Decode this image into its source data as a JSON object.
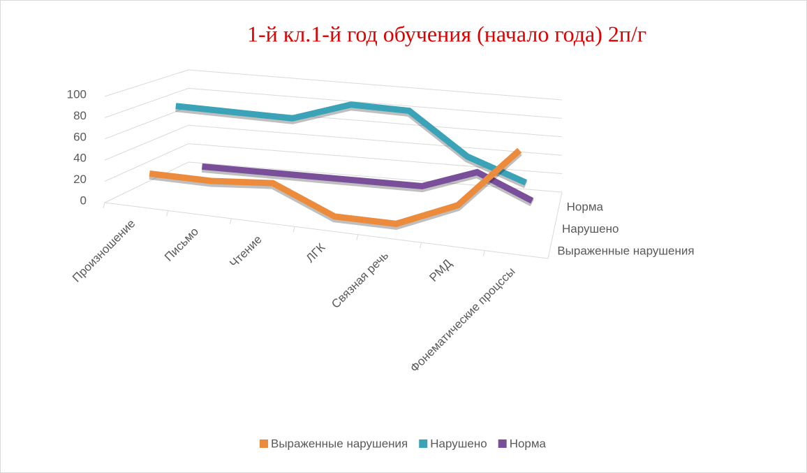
{
  "chart_data": {
    "type": "line3d",
    "title": "1-й кл.1-й год обучения (начало года) 2п/г",
    "categories": [
      "Произношение",
      "Письмо",
      "Чтение",
      "ЛГК",
      "Связная речь",
      "РМД",
      "Фонематические процссы"
    ],
    "z_categories": [
      "Норма",
      "Нарушено",
      "Выраженные нарушения"
    ],
    "series": [
      {
        "name": "Выраженные нарушения",
        "color": "#ed8b3c",
        "values": [
          25,
          25,
          30,
          5,
          5,
          30,
          90
        ]
      },
      {
        "name": "Нарушено",
        "color": "#3aa3b8",
        "values": [
          80,
          80,
          80,
          100,
          100,
          60,
          40
        ]
      },
      {
        "name": "Норма",
        "color": "#7a4f9a",
        "values": [
          5,
          5,
          5,
          5,
          5,
          25,
          0
        ]
      }
    ],
    "ylim": [
      0,
      100
    ],
    "yticks": [
      0,
      20,
      40,
      60,
      80,
      100
    ],
    "grid": true,
    "legend": "bottom"
  }
}
